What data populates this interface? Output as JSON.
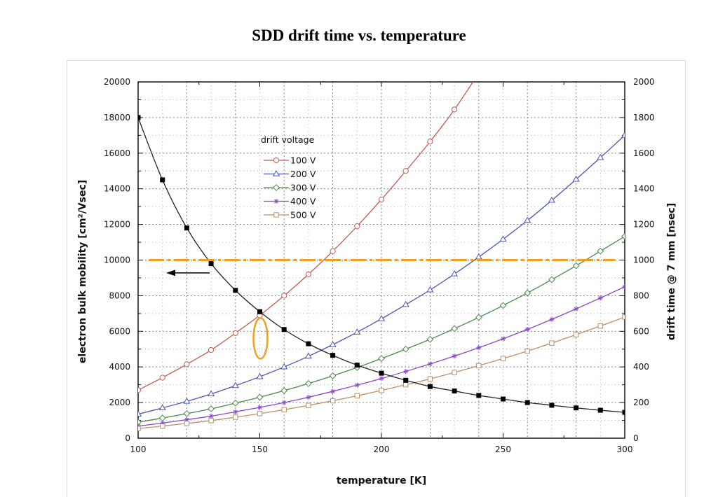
{
  "title": "SDD drift time vs. temperature",
  "chart_data": {
    "type": "line",
    "xlabel": "temperature [K]",
    "ylabel_left": "electron bulk mobility [cm²/Vsec]",
    "ylabel_right": "drift time @ 7 mm [nsec]",
    "xlim": [
      100,
      300
    ],
    "ylim_left": [
      0,
      20000
    ],
    "ylim_right": [
      0,
      2000
    ],
    "x_ticks": [
      "100",
      "150",
      "200",
      "250",
      "300"
    ],
    "y_left_ticks": [
      "0",
      "2000",
      "4000",
      "6000",
      "8000",
      "10000",
      "12000",
      "14000",
      "16000",
      "18000",
      "20000"
    ],
    "y_right_ticks": [
      "0",
      "200",
      "400",
      "600",
      "800",
      "1000",
      "1200",
      "1400",
      "1600",
      "1800",
      "2000"
    ],
    "grid": true,
    "legend_title": "drift voltage",
    "legend_position": "upper-left",
    "mobility": {
      "axis": "left",
      "color": "#222222",
      "marker": "filled-square",
      "x": [
        100,
        110,
        120,
        130,
        140,
        150,
        160,
        170,
        180,
        190,
        200,
        210,
        220,
        230,
        240,
        250,
        260,
        270,
        280,
        290,
        300
      ],
      "y": [
        18000,
        14500,
        11800,
        9800,
        8300,
        7100,
        6100,
        5300,
        4650,
        4100,
        3650,
        3250,
        2900,
        2650,
        2400,
        2200,
        2000,
        1850,
        1700,
        1570,
        1450
      ]
    },
    "series": [
      {
        "name": "100 V",
        "color": "#c45a50",
        "marker": "circle",
        "axis": "right",
        "x": [
          100,
          110,
          120,
          130,
          140,
          150,
          160,
          170,
          180,
          190,
          200,
          210,
          220,
          230
        ],
        "values": [
          270,
          340,
          415,
          495,
          590,
          690,
          800,
          920,
          1050,
          1190,
          1340,
          1500,
          1665,
          1845
        ]
      },
      {
        "name": "200 V",
        "color": "#4a55b5",
        "marker": "triangle",
        "axis": "right",
        "x": [
          100,
          110,
          120,
          130,
          140,
          150,
          160,
          170,
          180,
          190,
          200,
          210,
          220,
          230,
          240,
          250,
          260,
          270,
          280,
          290,
          300
        ],
        "values": [
          135,
          170,
          207,
          248,
          295,
          345,
          400,
          460,
          525,
          595,
          670,
          750,
          832,
          922,
          1017,
          1117,
          1222,
          1335,
          1453,
          1575,
          1700
        ]
      },
      {
        "name": "300 V",
        "color": "#4a8a4a",
        "marker": "diamond",
        "axis": "right",
        "x": [
          100,
          110,
          120,
          130,
          140,
          150,
          160,
          170,
          180,
          190,
          200,
          210,
          220,
          230,
          240,
          250,
          260,
          270,
          280,
          290,
          300
        ],
        "values": [
          90,
          113,
          138,
          165,
          197,
          230,
          267,
          307,
          350,
          397,
          447,
          500,
          555,
          615,
          678,
          745,
          815,
          890,
          968,
          1050,
          1133
        ]
      },
      {
        "name": "400 V",
        "color": "#8a4ac8",
        "marker": "asterisk",
        "axis": "right",
        "x": [
          100,
          110,
          120,
          130,
          140,
          150,
          160,
          170,
          180,
          190,
          200,
          210,
          220,
          230,
          240,
          250,
          260,
          270,
          280,
          290,
          300
        ],
        "values": [
          68,
          85,
          104,
          124,
          148,
          173,
          200,
          230,
          263,
          298,
          335,
          375,
          417,
          461,
          508,
          558,
          611,
          667,
          726,
          787,
          850
        ]
      },
      {
        "name": "500 V",
        "color": "#b8906a",
        "marker": "square",
        "axis": "right",
        "x": [
          100,
          110,
          120,
          130,
          140,
          150,
          160,
          170,
          180,
          190,
          200,
          210,
          220,
          230,
          240,
          250,
          260,
          270,
          280,
          290,
          300
        ],
        "values": [
          54,
          68,
          83,
          99,
          118,
          138,
          160,
          184,
          210,
          238,
          268,
          300,
          333,
          369,
          407,
          447,
          489,
          534,
          581,
          630,
          680
        ]
      }
    ],
    "annotations": {
      "reference_line": {
        "y_right": 1000,
        "color": "#f0a020",
        "style": "dash-dot"
      },
      "highlight_ellipse": {
        "x": 150,
        "y_right_center": 580,
        "color": "#f0a020"
      },
      "arrow": {
        "direction": "left",
        "points_to": "left-axis",
        "at_y_left": 9200
      }
    }
  }
}
